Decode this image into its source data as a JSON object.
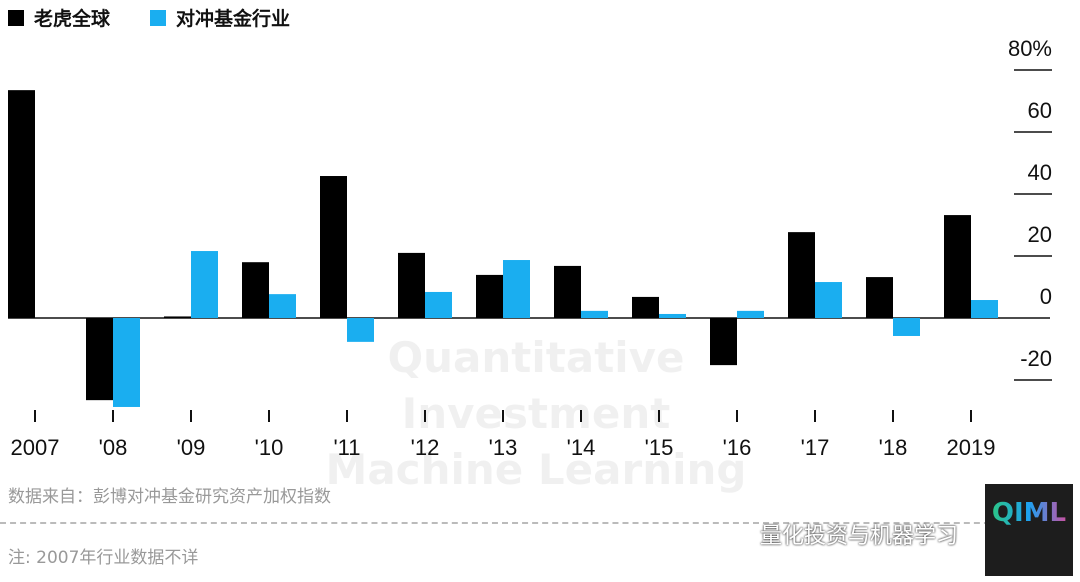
{
  "chart_data": {
    "type": "bar",
    "categories": [
      "2007",
      "'08",
      "'09",
      "'10",
      "'11",
      "'12",
      "'13",
      "'14",
      "'15",
      "'16",
      "'17",
      "'18",
      "2019"
    ],
    "series": [
      {
        "name": "老虎全球",
        "color": "#000000",
        "values": [
          73.5,
          -26.5,
          0.5,
          18,
          45.8,
          21,
          13.9,
          16.8,
          6.8,
          -15.2,
          27.7,
          13.2,
          33.2
        ]
      },
      {
        "name": "对冲基金行业",
        "color": "#1aaef0",
        "values": [
          null,
          -28.7,
          21.6,
          7.7,
          -7.7,
          8.4,
          18.7,
          2.3,
          1.3,
          2.3,
          11.6,
          -5.8,
          5.8
        ]
      }
    ],
    "yticks": [
      {
        "v": 80,
        "label": "80%"
      },
      {
        "v": 60,
        "label": "60"
      },
      {
        "v": 40,
        "label": "40"
      },
      {
        "v": 20,
        "label": "20"
      },
      {
        "v": 0,
        "label": "0"
      },
      {
        "v": -20,
        "label": "-20"
      }
    ],
    "ylim": [
      -30,
      80
    ],
    "legend": "top-left",
    "source": "数据来自：彭博对冲基金研究资产加权指数",
    "note": "注: 2007年行业数据不详"
  },
  "watermark": {
    "line1": "Quantitative Investment",
    "line2": "Machine Learning",
    "logo": "QIML",
    "wechat": "量化投资与机器学习"
  }
}
